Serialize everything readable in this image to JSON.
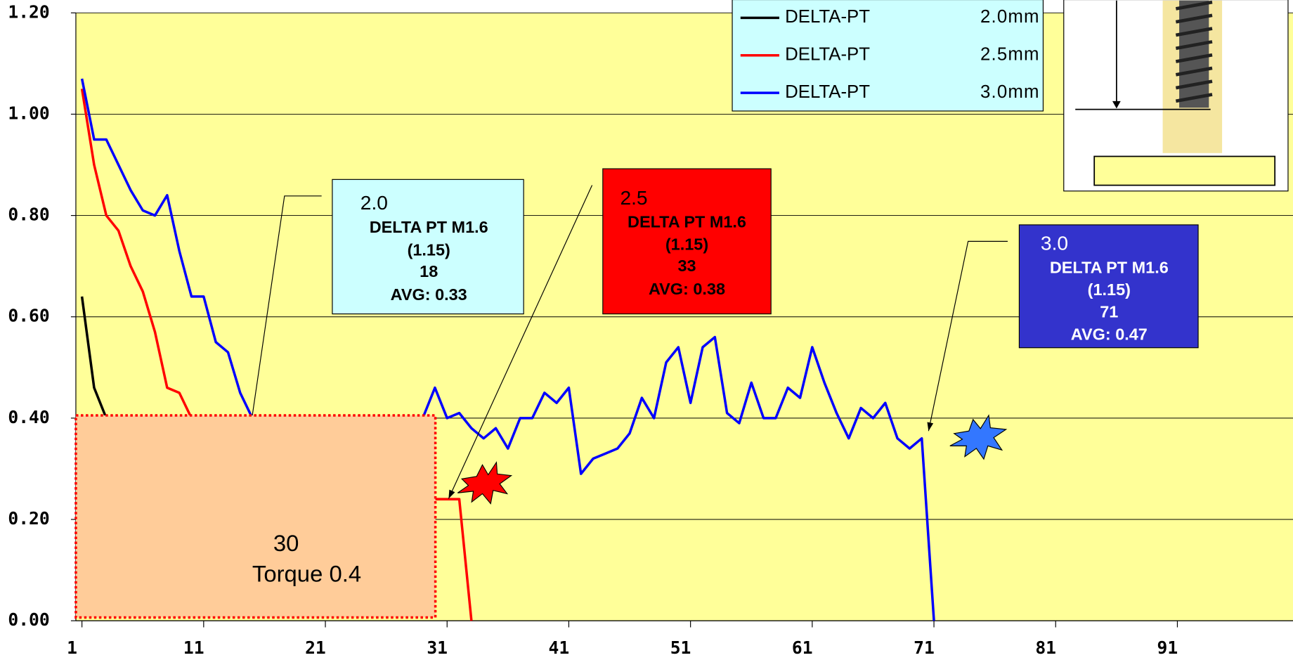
{
  "chart_data": {
    "type": "line",
    "x": [
      1,
      2,
      3,
      4,
      5,
      6,
      7,
      8,
      9,
      10,
      11,
      12,
      13,
      14,
      15,
      16,
      17,
      18,
      19,
      20,
      21,
      22,
      23,
      24,
      25,
      26,
      27,
      28,
      29,
      30,
      31,
      32,
      33,
      34,
      35,
      36,
      37,
      38,
      39,
      40,
      41,
      42,
      43,
      44,
      45,
      46,
      47,
      48,
      49,
      50,
      51,
      52,
      53,
      54,
      55,
      56,
      57,
      58,
      59,
      60,
      61,
      62,
      63,
      64,
      65,
      66,
      67,
      68,
      69,
      70,
      71
    ],
    "series": [
      {
        "name": "DELTA-PT",
        "size": "2.0mm",
        "color": "#000000",
        "values": [
          0.64,
          0.46,
          0.4,
          null,
          null,
          null,
          null,
          null,
          null,
          null,
          null,
          null,
          null,
          null,
          null,
          null,
          null,
          null,
          null,
          null,
          null,
          null,
          null,
          null,
          null,
          null,
          null,
          null,
          null,
          null,
          null,
          null,
          null,
          null,
          null,
          null,
          null,
          null,
          null,
          null,
          null,
          null,
          null,
          null,
          null,
          null,
          null,
          null,
          null,
          null,
          null,
          null,
          null,
          null,
          null,
          null,
          null,
          null,
          null,
          null,
          null,
          null,
          null,
          null,
          null,
          null,
          null,
          null,
          null,
          null,
          null
        ]
      },
      {
        "name": "DELTA-PT",
        "size": "2.5mm",
        "color": "#ff0000",
        "values": [
          1.05,
          0.9,
          0.8,
          0.77,
          0.7,
          0.65,
          0.57,
          0.46,
          0.45,
          0.4,
          null,
          null,
          null,
          null,
          null,
          null,
          null,
          null,
          null,
          null,
          null,
          null,
          null,
          null,
          null,
          null,
          null,
          null,
          null,
          0.24,
          0.24,
          0.24,
          0.0,
          null,
          null,
          null,
          null,
          null,
          null,
          null,
          null,
          null,
          null,
          null,
          null,
          null,
          null,
          null,
          null,
          null,
          null,
          null,
          null,
          null,
          null,
          null,
          null,
          null,
          null,
          null,
          null,
          null,
          null,
          null,
          null,
          null,
          null,
          null,
          null,
          null,
          null
        ]
      },
      {
        "name": "DELTA-PT",
        "size": "3.0mm",
        "color": "#0000ff",
        "values": [
          1.07,
          0.95,
          0.95,
          0.9,
          0.85,
          0.81,
          0.8,
          0.84,
          0.73,
          0.64,
          0.64,
          0.55,
          0.53,
          0.45,
          0.4,
          null,
          null,
          null,
          null,
          null,
          null,
          null,
          null,
          null,
          null,
          null,
          null,
          null,
          0.4,
          0.46,
          0.4,
          0.41,
          0.38,
          0.36,
          0.38,
          0.34,
          0.4,
          0.4,
          0.45,
          0.43,
          0.46,
          0.29,
          0.32,
          0.33,
          0.34,
          0.37,
          0.44,
          0.4,
          0.51,
          0.54,
          0.43,
          0.54,
          0.56,
          0.41,
          0.39,
          0.47,
          0.4,
          0.4,
          0.46,
          0.44,
          0.54,
          0.47,
          0.41,
          0.36,
          0.42,
          0.4,
          0.43,
          0.36,
          0.34,
          0.36,
          0.0
        ]
      }
    ],
    "xlim": [
      0.5,
      100.5
    ],
    "xticks": [
      1,
      11,
      21,
      31,
      41,
      51,
      61,
      71,
      81,
      91
    ],
    "ylim": [
      0,
      1.2
    ],
    "yticks": [
      {
        "value": 0,
        "label": "0.00"
      },
      {
        "value": 0.2,
        "label": "0.20"
      },
      {
        "value": 0.4,
        "label": "0.40"
      },
      {
        "value": 0.6,
        "label": "0.60"
      },
      {
        "value": 0.8,
        "label": "0.80"
      },
      {
        "value": 1.0,
        "label": "1.00"
      },
      {
        "value": 1.2,
        "label": "1.20"
      }
    ],
    "grid": true,
    "legend": "top-right",
    "annotations": [
      {
        "lines": [
          "2.0",
          "DELTA PT M1.6",
          "(1.15)",
          "18",
          "AVG: 0.33"
        ],
        "color": "#ccffff",
        "text_color": "#000000"
      },
      {
        "lines": [
          "2.5",
          "DELTA PT M1.6",
          "(1.15)",
          "33",
          "AVG: 0.38"
        ],
        "color": "#ff0000",
        "text_color": "#000000"
      },
      {
        "lines": [
          "3.0",
          "DELTA PT M1.6",
          "(1.15)",
          "71",
          "AVG: 0.47"
        ],
        "color": "#3333cc",
        "text_color": "#ffffff"
      }
    ],
    "zone": {
      "lines": [
        "30",
        "Torque 0.4"
      ],
      "color": "#ffcc99"
    }
  }
}
